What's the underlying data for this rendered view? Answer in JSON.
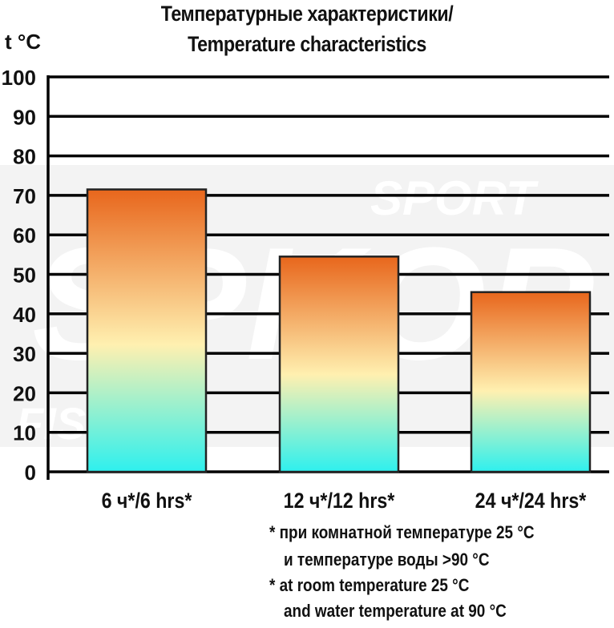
{
  "title": {
    "line1": "Температурные характеристики/",
    "line2": "Temperature characteristics"
  },
  "unit_label": "t °C",
  "watermark": [
    "SPORT",
    "SPKOP",
    "FISH"
  ],
  "colors": {
    "bar_top": "#e8661c",
    "bar_middle": "#fff0b0",
    "bar_bottom": "#2ef0ee",
    "gridline": "#000000",
    "bar_outline": "#222222"
  },
  "chart_data": {
    "type": "bar",
    "categories": [
      "6 ч*/6 hrs*",
      "12 ч*/12 hrs*",
      "24 ч*/24 hrs*"
    ],
    "values": [
      71.5,
      54.5,
      45.5
    ],
    "yticks": [
      0,
      10,
      20,
      30,
      40,
      50,
      60,
      70,
      80,
      90,
      100
    ],
    "ylim": [
      0,
      100
    ],
    "ylabel": "t °C",
    "xlabel": "",
    "grid": true,
    "legend": "none"
  },
  "notes": {
    "line1": "* при комнатной температуре 25 °C",
    "line2": "и температуре воды >90 °C",
    "line3": "* at room temperature 25 °C",
    "line4": "and water temperature at 90 °C"
  }
}
